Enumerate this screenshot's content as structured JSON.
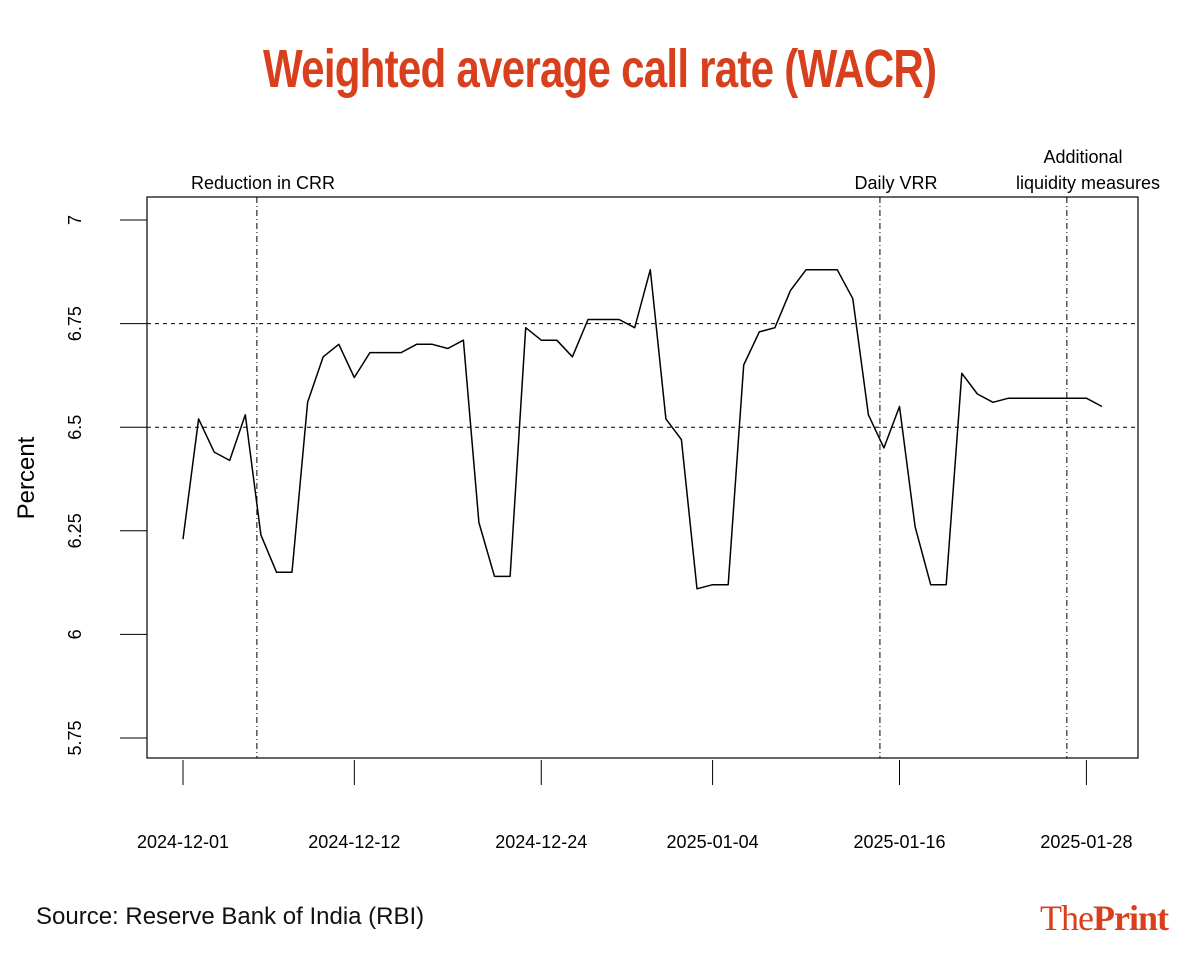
{
  "title": "Weighted average call rate (WACR)",
  "source": "Source: Reserve Bank of India (RBI)",
  "brand": {
    "part1": "The",
    "part2": "Print"
  },
  "colors": {
    "accent": "#d8401d",
    "line": "#000000",
    "axis": "#000000"
  },
  "chart_data": {
    "type": "line",
    "title": "Weighted average call rate (WACR)",
    "xlabel": "",
    "ylabel": "Percent",
    "ylim": [
      5.75,
      7.0
    ],
    "yticks": [
      5.75,
      6,
      6.25,
      6.5,
      6.75,
      7
    ],
    "ytick_labels": [
      "5.75",
      "6",
      "6.25",
      "6.5",
      "6.75",
      "7"
    ],
    "x_start": "2024-12-01",
    "x_end": "2025-01-29",
    "xticks": [
      {
        "day": 0,
        "label": "2024-12-01"
      },
      {
        "day": 11,
        "label": "2024-12-12"
      },
      {
        "day": 23,
        "label": "2024-12-24"
      },
      {
        "day": 34,
        "label": "2025-01-04"
      },
      {
        "day": 46,
        "label": "2025-01-16"
      },
      {
        "day": 58,
        "label": "2025-01-28"
      }
    ],
    "hlines": [
      6.5,
      6.75
    ],
    "events": [
      {
        "day": 5,
        "label": "Reduction in CRR"
      },
      {
        "day": 45,
        "label": "Daily VRR"
      },
      {
        "day": 57,
        "label": "Additional liquidity measures",
        "line1": "Additional",
        "line2": "liquidity measures"
      }
    ],
    "series": [
      {
        "name": "WACR",
        "points": [
          [
            0,
            6.23
          ],
          [
            1,
            6.52
          ],
          [
            2,
            6.44
          ],
          [
            3,
            6.42
          ],
          [
            4,
            6.53
          ],
          [
            5,
            6.24
          ],
          [
            6,
            6.15
          ],
          [
            7,
            6.15
          ],
          [
            8,
            6.56
          ],
          [
            9,
            6.67
          ],
          [
            10,
            6.7
          ],
          [
            11,
            6.62
          ],
          [
            12,
            6.68
          ],
          [
            13,
            6.68
          ],
          [
            14,
            6.68
          ],
          [
            15,
            6.7
          ],
          [
            16,
            6.7
          ],
          [
            17,
            6.69
          ],
          [
            18,
            6.71
          ],
          [
            19,
            6.27
          ],
          [
            20,
            6.14
          ],
          [
            21,
            6.14
          ],
          [
            22,
            6.74
          ],
          [
            23,
            6.71
          ],
          [
            24,
            6.71
          ],
          [
            25,
            6.67
          ],
          [
            26,
            6.76
          ],
          [
            27,
            6.76
          ],
          [
            28,
            6.76
          ],
          [
            29,
            6.74
          ],
          [
            30,
            6.88
          ],
          [
            31,
            6.52
          ],
          [
            32,
            6.47
          ],
          [
            33,
            6.11
          ],
          [
            34,
            6.12
          ],
          [
            35,
            6.12
          ],
          [
            36,
            6.65
          ],
          [
            37,
            6.73
          ],
          [
            38,
            6.74
          ],
          [
            39,
            6.83
          ],
          [
            40,
            6.88
          ],
          [
            41,
            6.88
          ],
          [
            42,
            6.88
          ],
          [
            43,
            6.81
          ],
          [
            44,
            6.53
          ],
          [
            45,
            6.45
          ],
          [
            46,
            6.55
          ],
          [
            47,
            6.26
          ],
          [
            48,
            6.12
          ],
          [
            49,
            6.12
          ],
          [
            50,
            6.63
          ],
          [
            51,
            6.58
          ],
          [
            52,
            6.56
          ],
          [
            53,
            6.57
          ],
          [
            54,
            6.57
          ],
          [
            55,
            6.57
          ],
          [
            56,
            6.57
          ],
          [
            57,
            6.57
          ],
          [
            58,
            6.57
          ],
          [
            59,
            6.55
          ]
        ]
      }
    ]
  }
}
